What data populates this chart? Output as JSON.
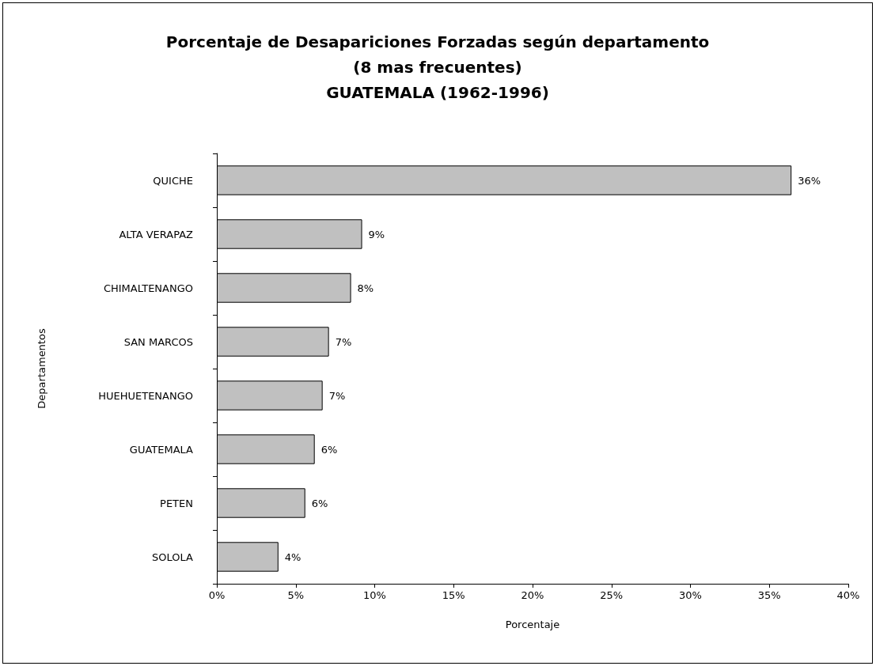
{
  "chart_data": {
    "type": "bar",
    "orientation": "horizontal",
    "title": "Porcentaje de Desapariciones Forzadas según departamento\n(8 mas frecuentes)\nGUATEMALA (1962-1996)",
    "xlabel": "Porcentaje",
    "ylabel": "Departamentos",
    "categories": [
      "QUICHE",
      "ALTA VERAPAZ",
      "CHIMALTENANGO",
      "SAN MARCOS",
      "HUEHUETENANGO",
      "GUATEMALA",
      "PETEN",
      "SOLOLA"
    ],
    "values": [
      36.4,
      9.2,
      8.5,
      7.1,
      6.7,
      6.2,
      5.6,
      3.9
    ],
    "value_labels": [
      "36%",
      "9%",
      "8%",
      "7%",
      "7%",
      "6%",
      "6%",
      "4%"
    ],
    "color": "#c0c0c0",
    "xlim": [
      0,
      40
    ],
    "xticks": [
      {
        "value": 0,
        "label": "0%"
      },
      {
        "value": 5,
        "label": "5%"
      },
      {
        "value": 10,
        "label": "10%"
      },
      {
        "value": 15,
        "label": "15%"
      },
      {
        "value": 20,
        "label": "20%"
      },
      {
        "value": 25,
        "label": "25%"
      },
      {
        "value": 30,
        "label": "30%"
      },
      {
        "value": 35,
        "label": "35%"
      },
      {
        "value": 40,
        "label": "40%"
      }
    ],
    "grid": false
  }
}
